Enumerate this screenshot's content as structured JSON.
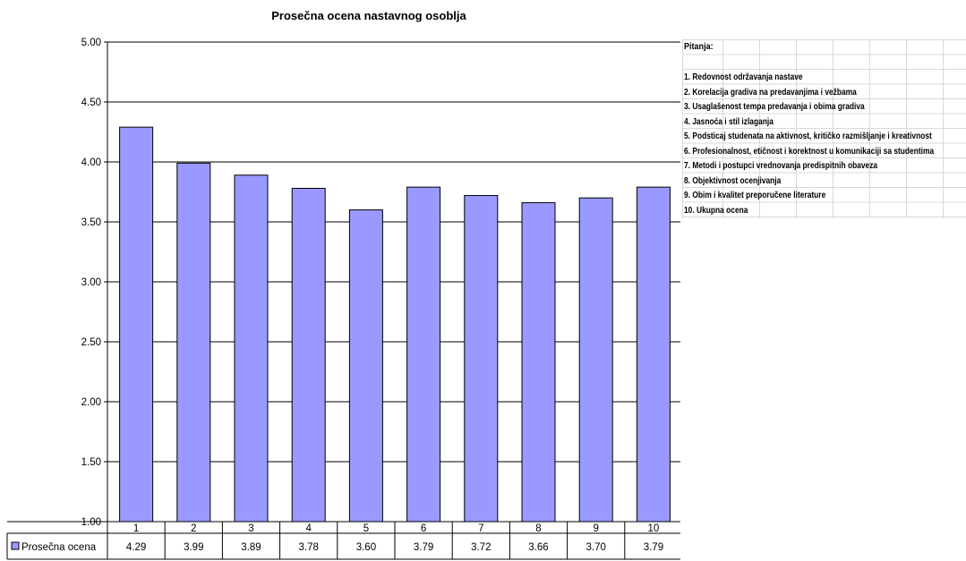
{
  "chart_data": {
    "type": "bar",
    "title": "Prosečna ocena nastavnog osoblja",
    "categories": [
      "1",
      "2",
      "3",
      "4",
      "5",
      "6",
      "7",
      "8",
      "9",
      "10"
    ],
    "series": [
      {
        "name": "Prosečna ocena",
        "values": [
          4.29,
          3.99,
          3.89,
          3.78,
          3.6,
          3.79,
          3.72,
          3.66,
          3.7,
          3.79
        ],
        "value_labels": [
          "4.29",
          "3.99",
          "3.89",
          "3.78",
          "3.60",
          "3.79",
          "3.72",
          "3.66",
          "3.70",
          "3.79"
        ]
      }
    ],
    "ylim": [
      1.0,
      5.0
    ],
    "yticks": [
      "1.00",
      "1.50",
      "2.00",
      "2.50",
      "3.00",
      "3.50",
      "4.00",
      "4.50",
      "5.00"
    ],
    "xlabel": "",
    "ylabel": "",
    "grid": true,
    "legend": "data-table-left",
    "bar_color": "#9999FF",
    "bar_border_color": "#000000"
  },
  "sheet": {
    "title": "Pitanja:",
    "questions": [
      "1. Redovnost održavanja nastave",
      "2. Korelacija gradiva na predavanjima i vežbama",
      "3. Usaglašenost tempa predavanja i obima gradiva",
      "4. Jasnoća i stil izlaganja",
      "5. Podsticaj studenata na aktivnost, kritičko razmišljanje i kreativnost",
      "6. Profesionalnost, etičnost i korektnost u komunikaciji sa studentima",
      "7. Metodi i postupci vrednovanja predispitnih obaveza",
      "8. Objektivnost ocenjivanja",
      "9. Obim i kvalitet preporučene literature",
      "10. Ukupna ocena"
    ]
  }
}
